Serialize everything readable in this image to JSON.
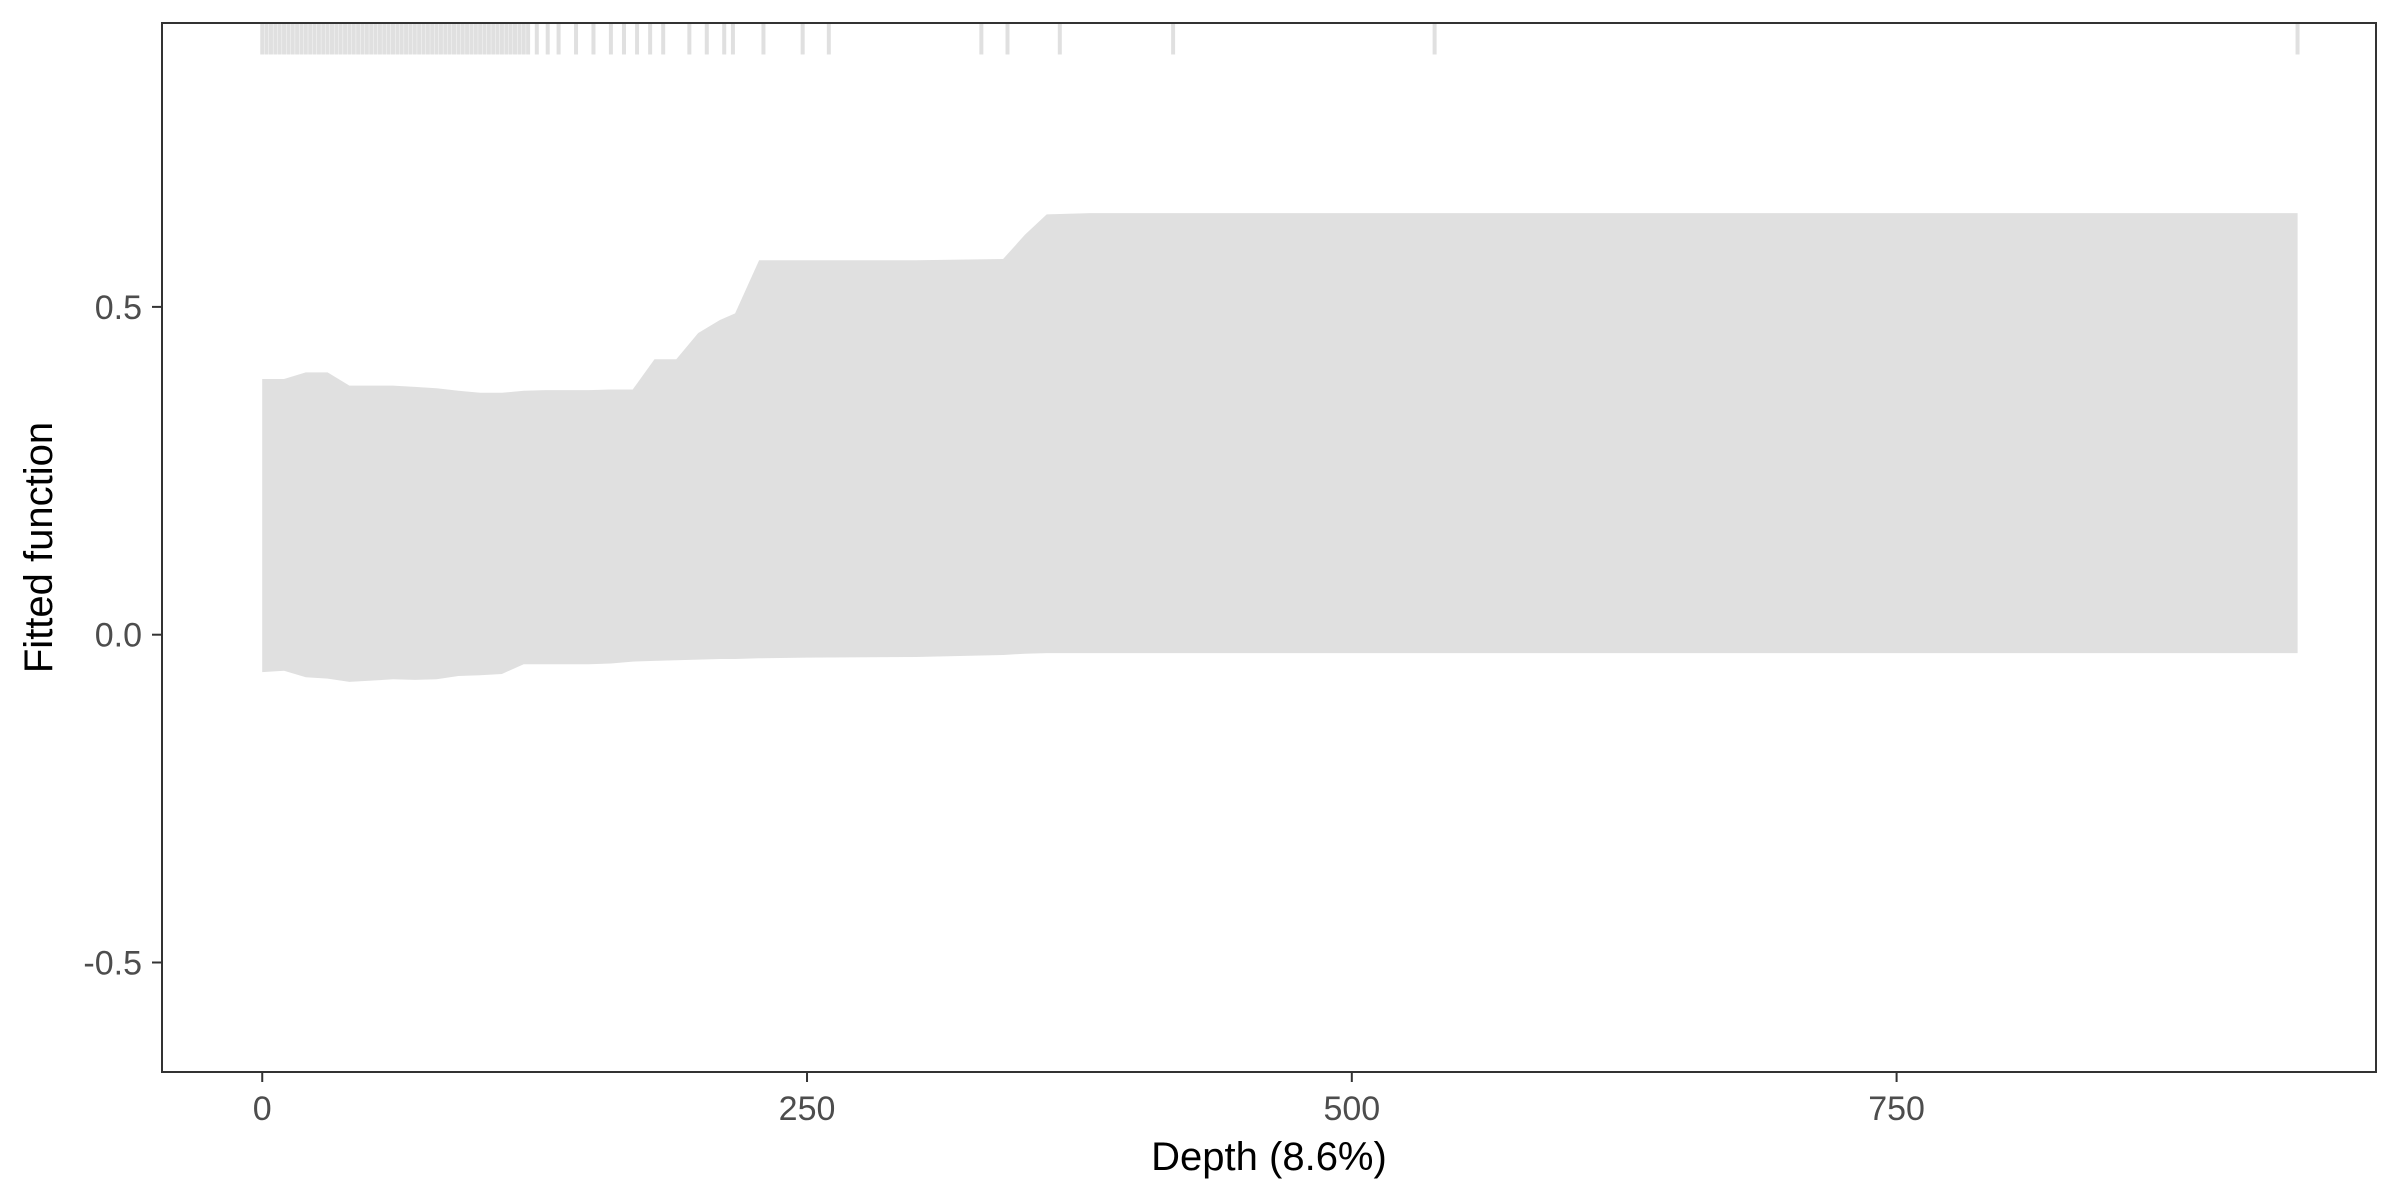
{
  "chart_data": {
    "type": "area",
    "title": "",
    "xlabel": "Depth  (8.6%)",
    "ylabel": "Fitted function",
    "xlim": [
      -46,
      970
    ],
    "ylim": [
      -0.667,
      0.933
    ],
    "x_ticks": [
      {
        "value": 0,
        "label": "0"
      },
      {
        "value": 250,
        "label": "250"
      },
      {
        "value": 500,
        "label": "500"
      },
      {
        "value": 750,
        "label": "750"
      }
    ],
    "y_ticks": [
      {
        "value": -0.5,
        "label": "-0.5"
      },
      {
        "value": 0.0,
        "label": "0.0"
      },
      {
        "value": 0.5,
        "label": "0.5"
      }
    ],
    "grid": false,
    "colors": {
      "band": "#e0e0e0",
      "rug": "#e0e0e0",
      "frame": "#333333",
      "tick_label": "#4d4d4d",
      "axis_title": "#000000"
    },
    "band": {
      "x": [
        0,
        10,
        20,
        30,
        40,
        50,
        60,
        70,
        80,
        90,
        100,
        110,
        120,
        130,
        140,
        150,
        160,
        170,
        180,
        190,
        200,
        210,
        217,
        228,
        250,
        300,
        340,
        350,
        360,
        380,
        400,
        500,
        600,
        700,
        800,
        900,
        934
      ],
      "upper": [
        0.39,
        0.39,
        0.4,
        0.4,
        0.38,
        0.38,
        0.38,
        0.378,
        0.376,
        0.372,
        0.369,
        0.369,
        0.372,
        0.373,
        0.373,
        0.373,
        0.374,
        0.374,
        0.42,
        0.42,
        0.46,
        0.48,
        0.49,
        0.571,
        0.571,
        0.571,
        0.573,
        0.61,
        0.641,
        0.643,
        0.643,
        0.643,
        0.643,
        0.643,
        0.643,
        0.643,
        0.643
      ],
      "lower": [
        -0.057,
        -0.055,
        -0.065,
        -0.067,
        -0.072,
        -0.07,
        -0.068,
        -0.069,
        -0.068,
        -0.063,
        -0.062,
        -0.06,
        -0.045,
        -0.045,
        -0.045,
        -0.045,
        -0.044,
        -0.041,
        -0.04,
        -0.039,
        -0.038,
        -0.037,
        -0.037,
        -0.036,
        -0.035,
        -0.034,
        -0.031,
        -0.029,
        -0.028,
        -0.028,
        -0.028,
        -0.028,
        -0.028,
        -0.028,
        -0.028,
        -0.028,
        -0.028
      ]
    },
    "rug_x": [
      0,
      2,
      4,
      6,
      8,
      10,
      12,
      14,
      16,
      18,
      20,
      22,
      24,
      26,
      28,
      30,
      32,
      34,
      36,
      38,
      40,
      42,
      44,
      46,
      48,
      50,
      52,
      54,
      56,
      58,
      60,
      62,
      64,
      66,
      68,
      70,
      72,
      74,
      76,
      78,
      80,
      82,
      84,
      86,
      88,
      90,
      92,
      94,
      96,
      98,
      100,
      102,
      104,
      106,
      108,
      110,
      112,
      114,
      116,
      118,
      120,
      122,
      126,
      131,
      136,
      144,
      152,
      160,
      166,
      172,
      178,
      184,
      196,
      204,
      212,
      216,
      230,
      248,
      260,
      330,
      342,
      366,
      418,
      538,
      934
    ],
    "rug_range": [
      0.885,
      0.933
    ]
  }
}
